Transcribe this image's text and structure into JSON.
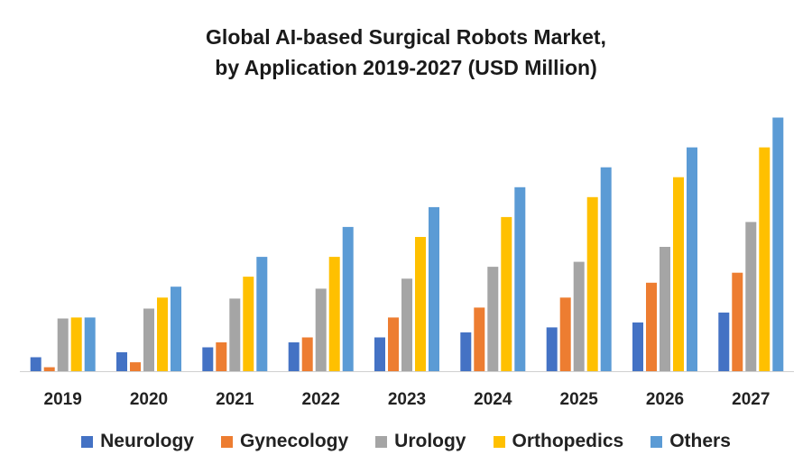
{
  "chart_data": {
    "type": "bar",
    "title_lines": [
      "Global AI-based Surgical Robots Market,",
      "by Application 2019-2027 (USD Million)"
    ],
    "categories": [
      "2019",
      "2020",
      "2021",
      "2022",
      "2023",
      "2024",
      "2025",
      "2026",
      "2027"
    ],
    "series": [
      {
        "name": "Neurology",
        "color": "#4472C4",
        "values": [
          14,
          19,
          24,
          29,
          34,
          39,
          44,
          49,
          59
        ]
      },
      {
        "name": "Gynecology",
        "color": "#ED7D31",
        "values": [
          4,
          9,
          29,
          34,
          54,
          64,
          74,
          89,
          99
        ]
      },
      {
        "name": "Urology",
        "color": "#A5A5A5",
        "values": [
          53,
          63,
          73,
          83,
          93,
          105,
          110,
          125,
          150
        ]
      },
      {
        "name": "Orthopedics",
        "color": "#FFC000",
        "values": [
          54,
          74,
          95,
          115,
          135,
          155,
          175,
          195,
          225
        ]
      },
      {
        "name": "Others",
        "color": "#5B9BD5",
        "values": [
          54,
          85,
          115,
          145,
          165,
          185,
          205,
          225,
          255
        ]
      }
    ],
    "ylim": [
      0,
      260
    ],
    "grid": false,
    "legend_position": "bottom"
  }
}
